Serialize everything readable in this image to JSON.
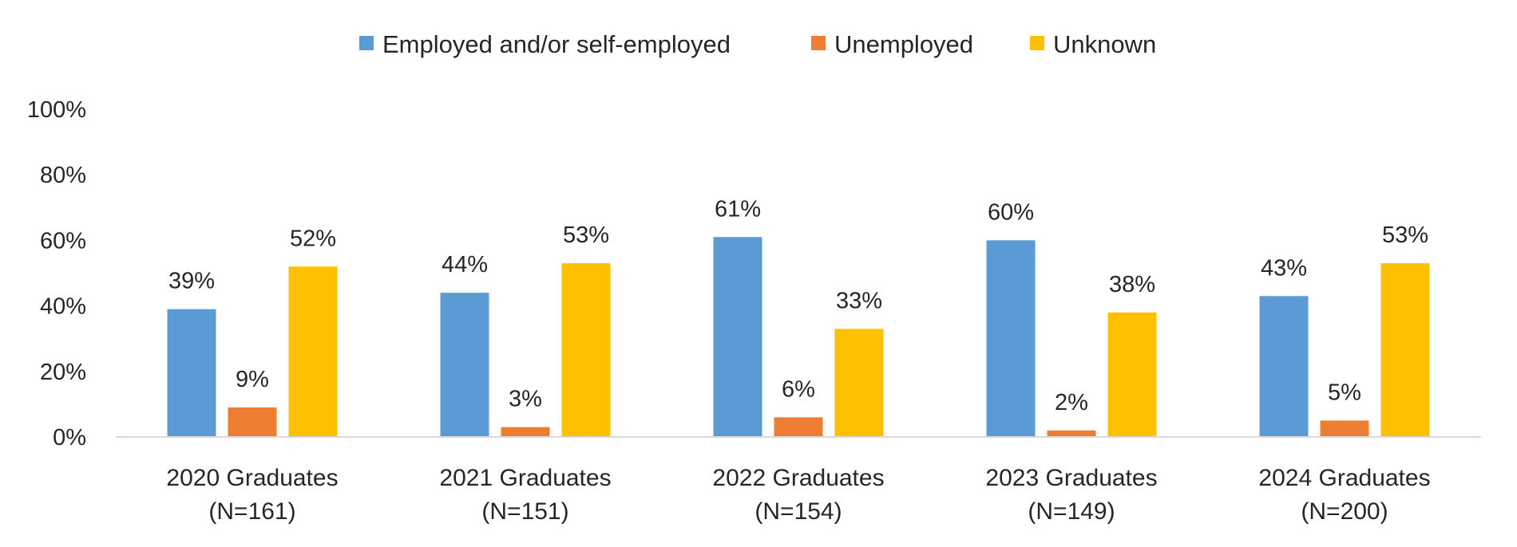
{
  "chart_data": {
    "type": "bar",
    "title": "",
    "xlabel": "",
    "ylabel": "",
    "ylim": [
      0,
      100
    ],
    "y_ticks": [
      0,
      20,
      40,
      60,
      80,
      100
    ],
    "y_tick_suffix": "%",
    "grid": false,
    "legend_position": "top-center",
    "categories": [
      [
        "2020 Graduates",
        "(N=161)"
      ],
      [
        "2021 Graduates",
        "(N=151)"
      ],
      [
        "2022 Graduates",
        "(N=154)"
      ],
      [
        "2023 Graduates",
        "(N=149)"
      ],
      [
        "2024 Graduates",
        "(N=200)"
      ]
    ],
    "series": [
      {
        "name": "Employed and/or self-employed",
        "color": "#5B9BD5",
        "values": [
          39,
          44,
          61,
          60,
          43
        ],
        "labels": [
          "39%",
          "44%",
          "61%",
          "60%",
          "43%"
        ]
      },
      {
        "name": "Unemployed",
        "color": "#ED7D31",
        "values": [
          9,
          3,
          6,
          2,
          5
        ],
        "labels": [
          "9%",
          "3%",
          "6%",
          "2%",
          "5%"
        ]
      },
      {
        "name": "Unknown",
        "color": "#FFC000",
        "values": [
          52,
          53,
          33,
          38,
          53
        ],
        "labels": [
          "52%",
          "53%",
          "33%",
          "38%",
          "53%"
        ]
      }
    ],
    "colors": {
      "axis": "#D9D9D9",
      "text": "#262626"
    }
  }
}
